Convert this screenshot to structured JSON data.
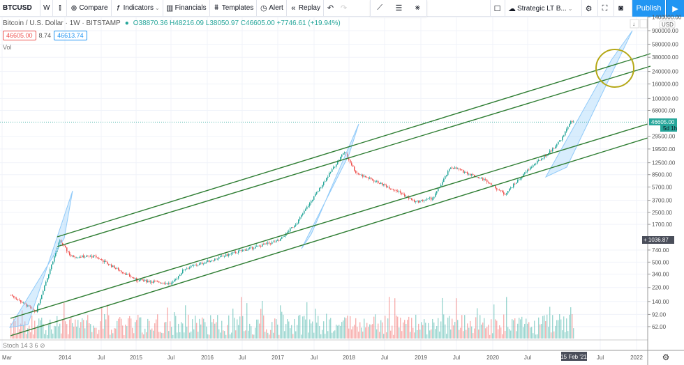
{
  "toolbar": {
    "symbol": "BTCUSD",
    "interval": "W",
    "compare": "Compare",
    "indicators": "Indicators",
    "financials": "Financials",
    "templates": "Templates",
    "alert": "Alert",
    "replay": "Replay",
    "layout_name": "Strategic LT B...",
    "publish": "Publish"
  },
  "legend": {
    "title": "Bitcoin / U.S. Dollar · 1W · BITSTAMP",
    "ohlc": "O38870.36 H48216.09 L38050.97 C46605.00 +7746.61 (+19.94%)",
    "bid": "46605.00",
    "spread": "8.74",
    "ask": "46613.74",
    "vol": "Vol",
    "stoch": "Stoch 14 3 6"
  },
  "price_axis": {
    "currency": "USD",
    "labels": [
      "1400000.00",
      "900000.00",
      "580000.00",
      "380000.00",
      "240000.00",
      "160000.00",
      "100000.00",
      "68000.00",
      "29500.00",
      "19500.00",
      "12500.00",
      "8500.00",
      "5700.00",
      "3700.00",
      "2500.00",
      "1700.00",
      "740.00",
      "500.00",
      "340.00",
      "220.00",
      "140.00",
      "92.00",
      "62.00"
    ],
    "last_price": "46605.00",
    "countdown": "5d 1h",
    "crosshair_price": "1036.87"
  },
  "time_axis": {
    "labels": [
      "Mar",
      "2014",
      "Jul",
      "2015",
      "Jul",
      "2016",
      "Jul",
      "2017",
      "Jul",
      "2018",
      "Jul",
      "2019",
      "Jul",
      "2020",
      "Jul",
      "Jul",
      "2022"
    ],
    "crosshair_date": "15 Feb '21"
  },
  "colors": {
    "up": "#26a69a",
    "down": "#ef5350",
    "channel": "#2e7d32",
    "box": "#90caf9",
    "circle": "#b5a816",
    "accent": "#2196f3"
  },
  "chart_data": {
    "type": "candlestick",
    "scale": "log",
    "grid": true,
    "price_path": [
      [
        "2013-05",
        148
      ],
      [
        "2013-08",
        100
      ],
      [
        "2013-12",
        1000
      ],
      [
        "2014-02",
        600
      ],
      [
        "2014-06",
        600
      ],
      [
        "2015-01",
        280
      ],
      [
        "2015-07",
        250
      ],
      [
        "2015-09",
        400
      ],
      [
        "2016-06",
        700
      ],
      [
        "2017-01",
        1000
      ],
      [
        "2017-04",
        1800
      ],
      [
        "2017-12",
        18000
      ],
      [
        "2018-02",
        9000
      ],
      [
        "2018-09",
        5000
      ],
      [
        "2018-12",
        3500
      ],
      [
        "2019-03",
        4000
      ],
      [
        "2019-06",
        11000
      ],
      [
        "2019-12",
        7000
      ],
      [
        "2020-03",
        4500
      ],
      [
        "2020-07",
        10000
      ],
      [
        "2020-11",
        19000
      ],
      [
        "2021-01",
        30000
      ],
      [
        "2021-02",
        46605
      ]
    ]
  }
}
